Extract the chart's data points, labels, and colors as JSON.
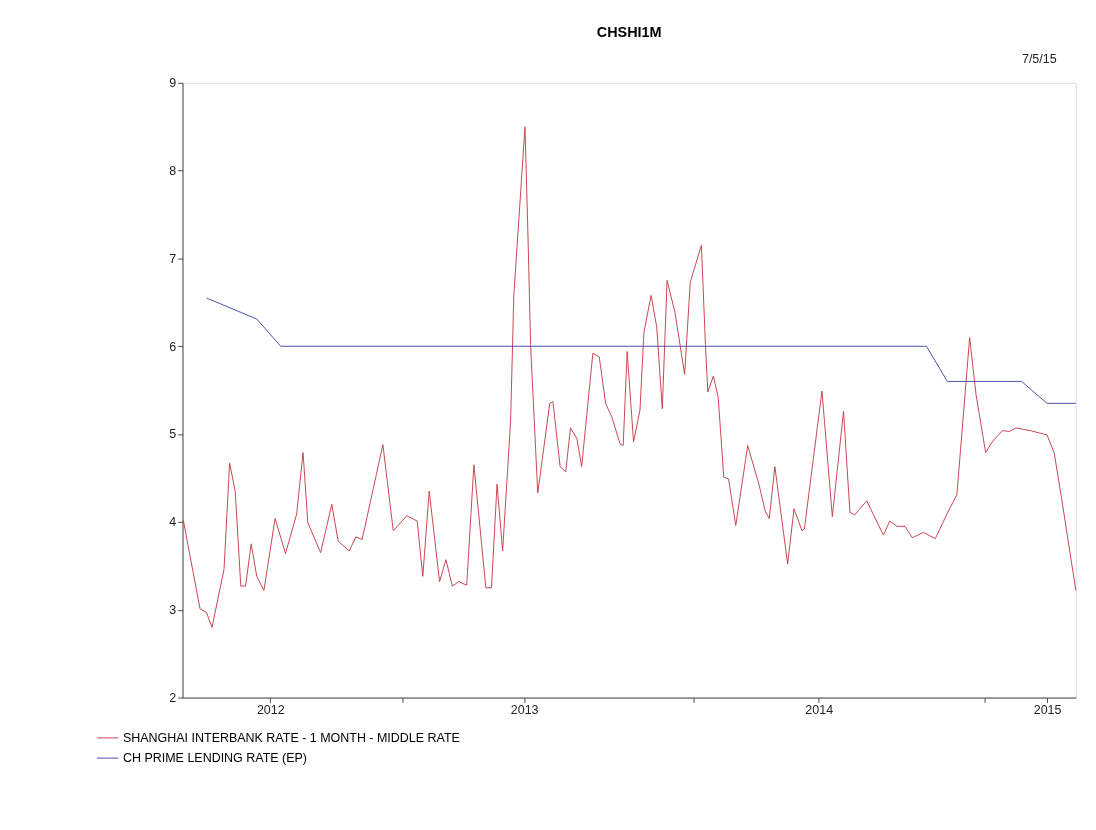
{
  "chart_data": {
    "type": "line",
    "title": "CHSHI1M",
    "annotations": [
      "7/5/15"
    ],
    "xlim": [
      "2012-04-01",
      "2015-04-25"
    ],
    "ylim": [
      2,
      9
    ],
    "xticks": [
      {
        "value": "2012-07-20",
        "label": "2012"
      },
      {
        "value": "2013-01-01",
        "label": null
      },
      {
        "value": "2013-06-03",
        "label": "2013"
      },
      {
        "value": "2014-01-01",
        "label": null
      },
      {
        "value": "2014-06-07",
        "label": "2014"
      },
      {
        "value": "2015-01-01",
        "label": null
      },
      {
        "value": "2015-03-20",
        "label": "2015"
      }
    ],
    "yticks": [
      2,
      3,
      4,
      5,
      6,
      7,
      8,
      9
    ],
    "grid": false,
    "legend": "bottom left",
    "line_style": "solid",
    "marker": "none",
    "series": [
      {
        "name": "SHANGHAI INTERBANK RATE - 1 MONTH - MIDDLE RATE",
        "color": "#c8404a",
        "x": [
          "2012-04-02",
          "2012-04-23",
          "2012-05-01",
          "2012-05-08",
          "2012-05-23",
          "2012-05-30",
          "2012-06-06",
          "2012-06-13",
          "2012-06-19",
          "2012-06-26",
          "2012-07-03",
          "2012-07-12",
          "2012-07-26",
          "2012-08-08",
          "2012-08-22",
          "2012-08-30",
          "2012-09-05",
          "2012-09-21",
          "2012-10-05",
          "2012-10-13",
          "2012-10-27",
          "2012-11-04",
          "2012-11-12",
          "2012-12-08",
          "2012-12-21",
          "2013-01-07",
          "2013-01-20",
          "2013-01-27",
          "2013-02-04",
          "2013-02-17",
          "2013-02-25",
          "2013-03-05",
          "2013-03-13",
          "2013-03-23",
          "2013-04-01",
          "2013-04-16",
          "2013-04-23",
          "2013-04-30",
          "2013-05-07",
          "2013-05-17",
          "2013-05-21",
          "2013-06-04",
          "2013-06-08",
          "2013-06-11",
          "2013-06-20",
          "2013-07-05",
          "2013-07-09",
          "2013-07-18",
          "2013-07-25",
          "2013-07-31",
          "2013-08-08",
          "2013-08-14",
          "2013-08-28",
          "2013-09-05",
          "2013-09-13",
          "2013-09-21",
          "2013-10-01",
          "2013-10-05",
          "2013-10-10",
          "2013-10-18",
          "2013-10-26",
          "2013-10-31",
          "2013-11-09",
          "2013-11-16",
          "2013-11-23",
          "2013-11-29",
          "2013-12-09",
          "2013-12-21",
          "2013-12-28",
          "2014-01-11",
          "2014-01-16",
          "2014-01-19",
          "2014-01-26",
          "2014-02-01",
          "2014-02-08",
          "2014-02-14",
          "2014-02-23",
          "2014-03-10",
          "2014-03-24",
          "2014-04-01",
          "2014-04-06",
          "2014-04-13",
          "2014-04-29",
          "2014-05-07",
          "2014-05-17",
          "2014-05-20",
          "2014-06-11",
          "2014-06-24",
          "2014-07-08",
          "2014-07-16",
          "2014-07-22",
          "2014-08-06",
          "2014-08-27",
          "2014-09-04",
          "2014-09-13",
          "2014-09-23",
          "2014-10-02",
          "2014-10-16",
          "2014-10-31",
          "2014-11-15",
          "2014-11-27",
          "2014-12-13",
          "2014-12-21",
          "2015-01-02",
          "2015-01-11",
          "2015-01-23",
          "2015-02-01",
          "2015-02-09",
          "2015-02-27",
          "2015-03-20",
          "2015-03-29",
          "2015-04-07",
          "2015-04-25"
        ],
        "values": [
          4.02,
          3.01,
          2.97,
          2.8,
          3.46,
          4.67,
          4.35,
          3.27,
          3.27,
          3.75,
          3.38,
          3.22,
          4.04,
          3.64,
          4.09,
          4.79,
          3.99,
          3.65,
          4.2,
          3.78,
          3.67,
          3.83,
          3.8,
          4.88,
          3.9,
          4.07,
          4.01,
          3.38,
          4.35,
          3.32,
          3.57,
          3.27,
          3.32,
          3.28,
          4.65,
          3.25,
          3.25,
          4.43,
          3.67,
          5.15,
          6.58,
          8.5,
          7.17,
          6.02,
          4.33,
          5.35,
          5.37,
          4.63,
          4.57,
          5.07,
          4.95,
          4.63,
          5.92,
          5.88,
          5.35,
          5.19,
          4.89,
          4.87,
          5.94,
          4.91,
          5.27,
          6.16,
          6.58,
          6.22,
          5.29,
          6.75,
          6.38,
          5.68,
          6.73,
          7.15,
          6.02,
          5.48,
          5.66,
          5.42,
          4.51,
          4.49,
          3.96,
          4.87,
          4.43,
          4.12,
          4.04,
          4.63,
          3.52,
          4.15,
          3.9,
          3.92,
          5.49,
          4.06,
          5.26,
          4.11,
          4.08,
          4.24,
          3.85,
          4.01,
          3.95,
          3.95,
          3.82,
          3.88,
          3.81,
          4.1,
          4.31,
          6.1,
          5.45,
          4.79,
          4.92,
          5.04,
          5.03,
          5.07,
          5.04,
          4.99,
          4.78,
          4.28,
          3.22
        ]
      },
      {
        "name": "CH PRIME LENDING RATE (EP)",
        "color": "#4a4aa8",
        "x": [
          "2012-05-01",
          "2012-07-03",
          "2012-08-02",
          "2014-10-20",
          "2014-11-15",
          "2015-02-16",
          "2015-03-20",
          "2015-04-25"
        ],
        "values": [
          6.55,
          6.31,
          6.0,
          6.0,
          5.6,
          5.6,
          5.35,
          5.35
        ]
      }
    ]
  }
}
